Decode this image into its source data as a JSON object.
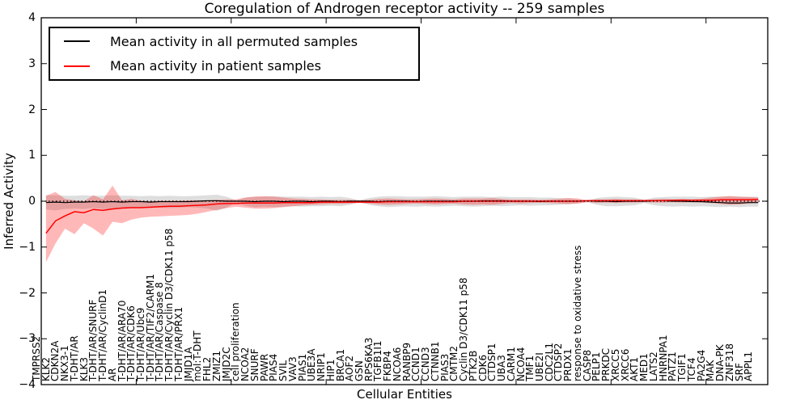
{
  "title": "Coregulation of Androgen receptor activity -- 259 samples",
  "axes": {
    "ylabel": "Inferred Activity",
    "xlabel": "Cellular Entities",
    "ylim": [
      -4,
      4
    ],
    "yticks": [
      4,
      3,
      2,
      1,
      0,
      -1,
      -2,
      -3,
      -4
    ],
    "ytick_labels": [
      "4",
      "3",
      "2",
      "1",
      "0",
      "−1",
      "−2",
      "−3",
      "−4"
    ],
    "grid": false
  },
  "legend": {
    "position": "upper left",
    "items": [
      {
        "label": "Mean activity in all permuted samples",
        "color": "#000000"
      },
      {
        "label": "Mean activity in patient samples",
        "color": "#ff0000"
      }
    ]
  },
  "chart_data": {
    "type": "line",
    "title": "Coregulation of Androgen receptor activity -- 259 samples",
    "xlabel": "Cellular Entities",
    "ylabel": "Inferred Activity",
    "ylim": [
      -4,
      4
    ],
    "zero_reference_line": {
      "style": "dotted",
      "color": "#000000",
      "y": 0
    },
    "categories": [
      "TMPRSS2",
      "KLK2",
      "CDKN2A",
      "NKX3-1",
      "T-DHT/AR",
      "KLK3",
      "T-DHT/AR/SNURF",
      "T-DHT/AR/CyclinD1",
      "AR",
      "T-DHT/AR/ARA70",
      "T-DHT/AR/CDK6",
      "T-DHT/AR/Ubc9",
      "T-DHT/AR/TIF2/CARM1",
      "T-DHT/AR/Caspase 8",
      "T-DHT/AR/Cyclin D3/CDK11 p58",
      "T-DHT/AR/PRX1",
      "JMJD1A",
      "mol:T-DHT",
      "FHL2",
      "ZMIZ1",
      "JMJD2C",
      "cell proliferation",
      "NCOA2",
      "SNURF",
      "PAWR",
      "PIAS4",
      "SVIL",
      "VAV3",
      "PIAS1",
      "UBE3A",
      "NRIP1",
      "HIP1",
      "BRCA1",
      "AOF2",
      "GSN",
      "RPS6KA3",
      "TGFB1I1",
      "FKBP4",
      "NCOA6",
      "RANBP9",
      "CCND1",
      "CCND3",
      "CTNNB1",
      "PIAS3",
      "CMTM2",
      "Cyclin D3/CDK11 p58",
      "PTK2B",
      "CDK6",
      "CTDSP1",
      "UBA3",
      "CARM1",
      "NCOA4",
      "TMF1",
      "UBE2I",
      "CDC2L1",
      "CTDSP2",
      "PRDX1",
      "response to oxidative stress",
      "CASP8",
      "PELP1",
      "PRKDC",
      "XRCC5",
      "XRCC6",
      "AKT1",
      "MED1",
      "LATS2",
      "HNRNPA1",
      "PATZ1",
      "TGIF1",
      "TCF4",
      "PA2G4",
      "MAK",
      "DNA-PK",
      "ZNF318",
      "SRF",
      "APPL1"
    ],
    "series": [
      {
        "name": "Mean activity in all permuted samples",
        "line_color": "#000000",
        "band_color": "#000000",
        "band_opacity": 0.13,
        "values": [
          -0.03,
          -0.02,
          -0.03,
          -0.02,
          -0.02,
          -0.01,
          -0.02,
          -0.01,
          -0.02,
          -0.01,
          -0.01,
          -0.02,
          -0.01,
          -0.01,
          -0.01,
          -0.01,
          0,
          0.01,
          0.01,
          0,
          0,
          0,
          -0.01,
          0,
          0,
          -0.01,
          0,
          0,
          -0.01,
          0,
          0,
          -0.01,
          0,
          0,
          0,
          -0.01,
          0,
          0,
          0,
          -0.01,
          0,
          0,
          0,
          0,
          0,
          0,
          0.01,
          0.01,
          0.01,
          0,
          0,
          0,
          -0.01,
          0,
          0,
          0,
          0,
          0.01,
          0,
          0,
          -0.01,
          0,
          0,
          0,
          0.01,
          0.01,
          0,
          0,
          -0.01,
          -0.01,
          -0.02,
          -0.03,
          -0.04,
          -0.04,
          -0.03,
          -0.03
        ],
        "band_low": [
          -0.18,
          -0.2,
          -0.17,
          -0.16,
          -0.17,
          -0.15,
          -0.17,
          -0.18,
          -0.15,
          -0.14,
          -0.14,
          -0.15,
          -0.14,
          -0.15,
          -0.14,
          -0.13,
          -0.14,
          -0.16,
          -0.21,
          -0.14,
          -0.03,
          -0.1,
          -0.13,
          -0.12,
          -0.13,
          -0.12,
          -0.11,
          -0.12,
          -0.11,
          -0.11,
          -0.1,
          -0.11,
          -0.08,
          -0.02,
          -0.08,
          -0.11,
          -0.13,
          -0.12,
          -0.11,
          -0.12,
          -0.11,
          -0.12,
          -0.11,
          -0.1,
          -0.11,
          -0.12,
          -0.11,
          -0.1,
          -0.11,
          -0.1,
          -0.09,
          -0.1,
          -0.09,
          -0.09,
          -0.08,
          -0.07,
          -0.05,
          -0.02,
          -0.08,
          -0.11,
          -0.11,
          -0.1,
          -0.09,
          -0.04,
          -0.09,
          -0.11,
          -0.12,
          -0.11,
          -0.12,
          -0.11,
          -0.12,
          -0.13,
          -0.12,
          -0.13,
          -0.12,
          -0.12
        ],
        "band_high": [
          0.13,
          0.13,
          0.12,
          0.12,
          0.13,
          0.12,
          0.12,
          0.13,
          0.12,
          0.12,
          0.11,
          0.12,
          0.11,
          0.12,
          0.11,
          0.11,
          0.12,
          0.13,
          0.14,
          0.1,
          0.02,
          0.08,
          0.1,
          0.1,
          0.11,
          0.1,
          0.1,
          0.1,
          0.09,
          0.1,
          0.09,
          0.1,
          0.07,
          0.02,
          0.07,
          0.1,
          0.11,
          0.11,
          0.1,
          0.1,
          0.1,
          0.11,
          0.1,
          0.09,
          0.1,
          0.1,
          0.1,
          0.09,
          0.1,
          0.09,
          0.09,
          0.09,
          0.08,
          0.08,
          0.07,
          0.06,
          0.04,
          0.02,
          0.07,
          0.09,
          0.1,
          0.09,
          0.08,
          0.03,
          0.08,
          0.09,
          0.1,
          0.1,
          0.1,
          0.09,
          0.1,
          0.1,
          0.11,
          0.1,
          0.1,
          0.1
        ]
      },
      {
        "name": "Mean activity in patient samples",
        "line_color": "#ff0000",
        "band_color": "#ff0000",
        "band_opacity": 0.28,
        "values": [
          -0.7,
          -0.43,
          -0.32,
          -0.23,
          -0.25,
          -0.18,
          -0.2,
          -0.17,
          -0.15,
          -0.14,
          -0.14,
          -0.13,
          -0.12,
          -0.11,
          -0.11,
          -0.1,
          -0.09,
          -0.08,
          -0.06,
          -0.05,
          -0.05,
          -0.04,
          -0.04,
          -0.04,
          -0.04,
          -0.03,
          -0.03,
          -0.03,
          -0.03,
          -0.02,
          -0.02,
          -0.02,
          -0.02,
          -0.02,
          -0.02,
          -0.02,
          -0.01,
          -0.01,
          -0.01,
          -0.01,
          -0.01,
          -0.01,
          -0.01,
          -0.01,
          0,
          0,
          0,
          0,
          0,
          0,
          0,
          0,
          0,
          0,
          0,
          0,
          0,
          0.01,
          0.01,
          0.01,
          0.01,
          0.01,
          0.01,
          0.01,
          0.01,
          0.01,
          0.02,
          0.02,
          0.02,
          0.02,
          0.02,
          0.03,
          0.03,
          0.03,
          0.03,
          0.04
        ],
        "band_low": [
          -1.33,
          -0.92,
          -0.6,
          -0.72,
          -0.48,
          -0.6,
          -0.75,
          -0.45,
          -0.48,
          -0.4,
          -0.36,
          -0.34,
          -0.33,
          -0.32,
          -0.31,
          -0.3,
          -0.27,
          -0.23,
          -0.19,
          -0.15,
          -0.12,
          -0.14,
          -0.16,
          -0.16,
          -0.15,
          -0.13,
          -0.11,
          -0.09,
          -0.08,
          -0.07,
          -0.06,
          -0.06,
          -0.05,
          -0.04,
          -0.05,
          -0.07,
          -0.08,
          -0.07,
          -0.06,
          -0.05,
          -0.06,
          -0.07,
          -0.06,
          -0.05,
          -0.07,
          -0.08,
          -0.07,
          -0.08,
          -0.06,
          -0.04,
          -0.05,
          -0.04,
          -0.03,
          -0.04,
          -0.05,
          -0.06,
          -0.05,
          -0.02,
          -0.04,
          -0.03,
          -0.04,
          -0.03,
          -0.03,
          -0.02,
          -0.03,
          -0.03,
          -0.02,
          -0.03,
          -0.02,
          -0.03,
          -0.04,
          -0.06,
          -0.08,
          -0.07,
          -0.05,
          -0.04
        ],
        "band_high": [
          0.12,
          0.2,
          0.05,
          0.02,
          0.0,
          0.13,
          0.04,
          0.34,
          0.02,
          0.05,
          0.01,
          0.0,
          0.01,
          0.01,
          0.01,
          0.02,
          0.02,
          0.02,
          0.03,
          0.04,
          0.04,
          0.08,
          0.1,
          0.11,
          0.1,
          0.08,
          0.06,
          0.05,
          0.04,
          0.04,
          0.03,
          0.03,
          0.03,
          0.02,
          0.03,
          0.05,
          0.06,
          0.05,
          0.04,
          0.04,
          0.05,
          0.06,
          0.05,
          0.04,
          0.06,
          0.06,
          0.06,
          0.07,
          0.05,
          0.04,
          0.04,
          0.04,
          0.03,
          0.04,
          0.05,
          0.07,
          0.06,
          0.02,
          0.04,
          0.04,
          0.05,
          0.04,
          0.04,
          0.03,
          0.04,
          0.05,
          0.04,
          0.05,
          0.04,
          0.05,
          0.08,
          0.1,
          0.11,
          0.1,
          0.09,
          0.08
        ]
      }
    ],
    "sample_count": 259,
    "x_major_tick_interval": 10
  }
}
